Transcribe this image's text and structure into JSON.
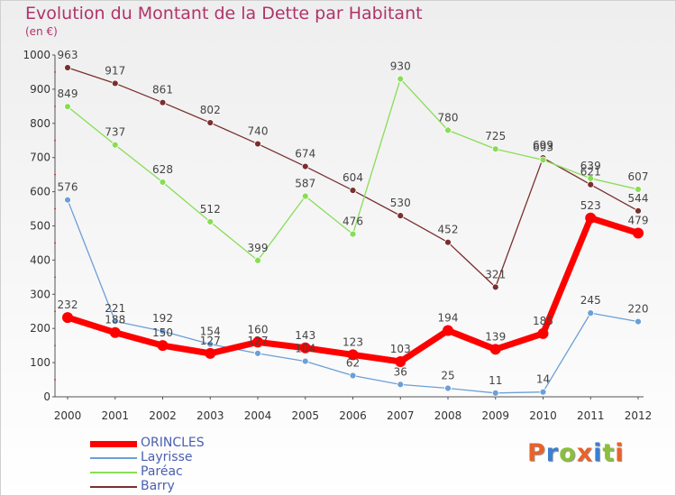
{
  "chart_data": {
    "type": "line",
    "title": "Evolution du Montant de la Dette par Habitant",
    "subtitle": "(en €)",
    "xlabel": "",
    "ylabel": "",
    "categories": [
      "2000",
      "2001",
      "2002",
      "2003",
      "2004",
      "2005",
      "2006",
      "2007",
      "2008",
      "2009",
      "2010",
      "2011",
      "2012"
    ],
    "ylim": [
      0,
      1000
    ],
    "yticks": [
      0,
      100,
      200,
      300,
      400,
      500,
      600,
      700,
      800,
      900,
      1000
    ],
    "grid": false,
    "legend_position": "bottom-left",
    "series": [
      {
        "name": "ORINCLES",
        "color": "#ff0000",
        "values": [
          232,
          188,
          150,
          127,
          160,
          143,
          123,
          103,
          194,
          139,
          185,
          523,
          479
        ]
      },
      {
        "name": "Layrisse",
        "color": "#6c9fd6",
        "values": [
          576,
          221,
          192,
          154,
          127,
          104,
          62,
          36,
          25,
          11,
          14,
          245,
          220
        ]
      },
      {
        "name": "Paréac",
        "color": "#88dd55",
        "values": [
          849,
          737,
          628,
          512,
          399,
          587,
          476,
          930,
          780,
          725,
          693,
          639,
          607
        ]
      },
      {
        "name": "Barry",
        "color": "#7a2f2f",
        "values": [
          963,
          917,
          861,
          802,
          740,
          674,
          604,
          530,
          452,
          321,
          699,
          621,
          544
        ]
      }
    ]
  },
  "logo": {
    "text": "Proxiti"
  }
}
